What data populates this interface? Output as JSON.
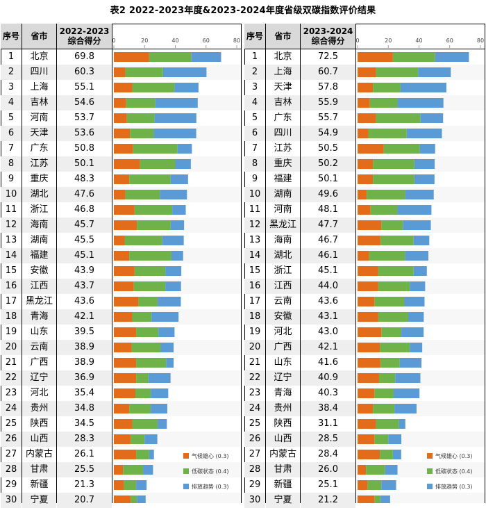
{
  "title": "表2 2022-2023年度&2023-2024年度省级双碳指数评价结果",
  "colors": {
    "climate": "#e36c1a",
    "lowcarbon": "#6fb24a",
    "emission": "#5b9bd5"
  },
  "chart_data": [
    {
      "type": "bar",
      "orientation": "horizontal",
      "stacked": true,
      "headers": {
        "seq": "序号",
        "province": "省市",
        "score_line1": "2022-2023",
        "score_line2": "综合得分"
      },
      "xlim": [
        0,
        80
      ],
      "xticks": [
        0,
        20,
        40,
        60,
        80
      ],
      "legend": [
        "气候雄心 (0.3)",
        "低碳状态 (0.4)",
        "排放趋势 (0.3)"
      ],
      "legend_position": "bottom-right",
      "rows": [
        {
          "rank": 1,
          "province": "北京",
          "score": "69.8",
          "climate": 23.0,
          "lowcarbon": 27.5,
          "emission": 19.3
        },
        {
          "rank": 2,
          "province": "四川",
          "score": "60.3",
          "climate": 7.5,
          "lowcarbon": 24.5,
          "emission": 28.3
        },
        {
          "rank": 3,
          "province": "上海",
          "score": "55.1",
          "climate": 12.0,
          "lowcarbon": 27.5,
          "emission": 15.6
        },
        {
          "rank": 4,
          "province": "吉林",
          "score": "54.6",
          "climate": 8.0,
          "lowcarbon": 19.0,
          "emission": 27.6
        },
        {
          "rank": 5,
          "province": "河南",
          "score": "53.7",
          "climate": 8.5,
          "lowcarbon": 18.0,
          "emission": 27.2
        },
        {
          "rank": 6,
          "province": "天津",
          "score": "53.6",
          "climate": 10.5,
          "lowcarbon": 15.5,
          "emission": 27.6
        },
        {
          "rank": 7,
          "province": "广东",
          "score": "50.8",
          "climate": 12.5,
          "lowcarbon": 29.0,
          "emission": 9.3
        },
        {
          "rank": 8,
          "province": "江苏",
          "score": "50.1",
          "climate": 17.0,
          "lowcarbon": 23.0,
          "emission": 10.1
        },
        {
          "rank": 9,
          "province": "重庆",
          "score": "48.3",
          "climate": 10.0,
          "lowcarbon": 27.0,
          "emission": 11.3
        },
        {
          "rank": 10,
          "province": "湖北",
          "score": "47.6",
          "climate": 7.5,
          "lowcarbon": 22.5,
          "emission": 17.6
        },
        {
          "rank": 11,
          "province": "浙江",
          "score": "46.8",
          "climate": 13.5,
          "lowcarbon": 24.5,
          "emission": 8.8
        },
        {
          "rank": 12,
          "province": "海南",
          "score": "45.7",
          "climate": 15.0,
          "lowcarbon": 22.0,
          "emission": 8.7
        },
        {
          "rank": 13,
          "province": "湖南",
          "score": "45.5",
          "climate": 7.0,
          "lowcarbon": 24.5,
          "emission": 14.0
        },
        {
          "rank": 14,
          "province": "福建",
          "score": "45.1",
          "climate": 10.0,
          "lowcarbon": 27.5,
          "emission": 7.6
        },
        {
          "rank": 15,
          "province": "安徽",
          "score": "43.9",
          "climate": 13.5,
          "lowcarbon": 20.0,
          "emission": 10.4
        },
        {
          "rank": 16,
          "province": "江西",
          "score": "43.7",
          "climate": 13.0,
          "lowcarbon": 20.5,
          "emission": 10.2
        },
        {
          "rank": 17,
          "province": "黑龙江",
          "score": "43.6",
          "climate": 16.0,
          "lowcarbon": 12.5,
          "emission": 15.1
        },
        {
          "rank": 18,
          "province": "青海",
          "score": "42.1",
          "climate": 12.0,
          "lowcarbon": 12.5,
          "emission": 17.6
        },
        {
          "rank": 19,
          "province": "山东",
          "score": "39.5",
          "climate": 14.5,
          "lowcarbon": 14.5,
          "emission": 10.5
        },
        {
          "rank": 20,
          "province": "云南",
          "score": "38.9",
          "climate": 11.5,
          "lowcarbon": 19.0,
          "emission": 8.4
        },
        {
          "rank": 21,
          "province": "广西",
          "score": "38.9",
          "climate": 14.5,
          "lowcarbon": 19.5,
          "emission": 4.9
        },
        {
          "rank": 22,
          "province": "辽宁",
          "score": "36.9",
          "climate": 14.5,
          "lowcarbon": 8.0,
          "emission": 14.4
        },
        {
          "rank": 23,
          "province": "河北",
          "score": "35.4",
          "climate": 14.0,
          "lowcarbon": 10.0,
          "emission": 11.4
        },
        {
          "rank": 24,
          "province": "贵州",
          "score": "34.8",
          "climate": 10.0,
          "lowcarbon": 14.0,
          "emission": 10.8
        },
        {
          "rank": 25,
          "province": "陕西",
          "score": "34.5",
          "climate": 12.0,
          "lowcarbon": 16.5,
          "emission": 6.0
        },
        {
          "rank": 26,
          "province": "山西",
          "score": "28.3",
          "climate": 11.0,
          "lowcarbon": 9.0,
          "emission": 8.3
        },
        {
          "rank": 27,
          "province": "内蒙古",
          "score": "26.1",
          "climate": 14.5,
          "lowcarbon": 8.5,
          "emission": 3.1
        },
        {
          "rank": 28,
          "province": "甘肃",
          "score": "25.5",
          "climate": 6.0,
          "lowcarbon": 13.0,
          "emission": 6.5
        },
        {
          "rank": 29,
          "province": "新疆",
          "score": "21.3",
          "climate": 6.5,
          "lowcarbon": 8.0,
          "emission": 6.8
        },
        {
          "rank": 30,
          "province": "宁夏",
          "score": "20.7",
          "climate": 11.0,
          "lowcarbon": 4.0,
          "emission": 5.7
        }
      ]
    },
    {
      "type": "bar",
      "orientation": "horizontal",
      "stacked": true,
      "headers": {
        "seq": "序号",
        "province": "省市",
        "score_line1": "2023-2024",
        "score_line2": "综合得分"
      },
      "xlim": [
        0,
        80
      ],
      "xticks": [
        0,
        20,
        40,
        60,
        80
      ],
      "legend": [
        "气候雄心 (0.3)",
        "低碳状态 (0.4)",
        "排放趋势 (0.3)"
      ],
      "legend_position": "bottom-right",
      "rows": [
        {
          "rank": 1,
          "province": "北京",
          "score": "72.5",
          "climate": 23.0,
          "lowcarbon": 27.5,
          "emission": 22.0
        },
        {
          "rank": 2,
          "province": "上海",
          "score": "60.7",
          "climate": 12.0,
          "lowcarbon": 27.5,
          "emission": 21.2
        },
        {
          "rank": 3,
          "province": "天津",
          "score": "57.8",
          "climate": 10.0,
          "lowcarbon": 18.0,
          "emission": 29.8
        },
        {
          "rank": 4,
          "province": "吉林",
          "score": "55.9",
          "climate": 8.0,
          "lowcarbon": 18.0,
          "emission": 29.9
        },
        {
          "rank": 5,
          "province": "广东",
          "score": "55.7",
          "climate": 12.0,
          "lowcarbon": 29.0,
          "emission": 14.7
        },
        {
          "rank": 6,
          "province": "四川",
          "score": "54.9",
          "climate": 7.0,
          "lowcarbon": 25.0,
          "emission": 22.9
        },
        {
          "rank": 7,
          "province": "江苏",
          "score": "50.5",
          "climate": 17.0,
          "lowcarbon": 23.5,
          "emission": 10.0
        },
        {
          "rank": 8,
          "province": "重庆",
          "score": "50.2",
          "climate": 10.0,
          "lowcarbon": 27.0,
          "emission": 13.2
        },
        {
          "rank": 9,
          "province": "福建",
          "score": "50.1",
          "climate": 10.0,
          "lowcarbon": 27.0,
          "emission": 13.1
        },
        {
          "rank": 10,
          "province": "湖南",
          "score": "49.6",
          "climate": 6.0,
          "lowcarbon": 25.0,
          "emission": 18.6
        },
        {
          "rank": 11,
          "province": "河南",
          "score": "48.1",
          "climate": 8.5,
          "lowcarbon": 17.5,
          "emission": 22.1
        },
        {
          "rank": 12,
          "province": "黑龙江",
          "score": "47.7",
          "climate": 15.5,
          "lowcarbon": 14.0,
          "emission": 18.2
        },
        {
          "rank": 13,
          "province": "海南",
          "score": "46.7",
          "climate": 15.0,
          "lowcarbon": 21.5,
          "emission": 10.2
        },
        {
          "rank": 14,
          "province": "湖北",
          "score": "46.1",
          "climate": 7.5,
          "lowcarbon": 23.5,
          "emission": 15.1
        },
        {
          "rank": 15,
          "province": "浙江",
          "score": "45.1",
          "climate": 13.5,
          "lowcarbon": 23.0,
          "emission": 8.6
        },
        {
          "rank": 16,
          "province": "江西",
          "score": "44.0",
          "climate": 13.5,
          "lowcarbon": 20.5,
          "emission": 10.0
        },
        {
          "rank": 17,
          "province": "云南",
          "score": "43.6",
          "climate": 11.0,
          "lowcarbon": 19.5,
          "emission": 13.1
        },
        {
          "rank": 18,
          "province": "安徽",
          "score": "43.1",
          "climate": 13.5,
          "lowcarbon": 19.5,
          "emission": 10.1
        },
        {
          "rank": 19,
          "province": "河北",
          "score": "43.0",
          "climate": 15.5,
          "lowcarbon": 13.0,
          "emission": 14.5
        },
        {
          "rank": 20,
          "province": "广西",
          "score": "42.1",
          "climate": 14.5,
          "lowcarbon": 19.5,
          "emission": 8.1
        },
        {
          "rank": 21,
          "province": "山东",
          "score": "41.6",
          "climate": 15.0,
          "lowcarbon": 12.5,
          "emission": 14.1
        },
        {
          "rank": 22,
          "province": "辽宁",
          "score": "40.9",
          "climate": 14.0,
          "lowcarbon": 10.5,
          "emission": 16.4
        },
        {
          "rank": 23,
          "province": "青海",
          "score": "40.3",
          "climate": 11.0,
          "lowcarbon": 12.5,
          "emission": 16.8
        },
        {
          "rank": 24,
          "province": "贵州",
          "score": "38.4",
          "climate": 10.0,
          "lowcarbon": 14.0,
          "emission": 14.4
        },
        {
          "rank": 25,
          "province": "陕西",
          "score": "31.1",
          "climate": 12.0,
          "lowcarbon": 15.0,
          "emission": 4.1
        },
        {
          "rank": 26,
          "province": "山西",
          "score": "28.5",
          "climate": 11.0,
          "lowcarbon": 9.0,
          "emission": 8.5
        },
        {
          "rank": 27,
          "province": "内蒙古",
          "score": "28.4",
          "climate": 14.5,
          "lowcarbon": 8.5,
          "emission": 5.4
        },
        {
          "rank": 28,
          "province": "甘肃",
          "score": "26.0",
          "climate": 5.5,
          "lowcarbon": 12.5,
          "emission": 8.0
        },
        {
          "rank": 29,
          "province": "新疆",
          "score": "25.1",
          "climate": 6.5,
          "lowcarbon": 9.0,
          "emission": 9.6
        },
        {
          "rank": 30,
          "province": "宁夏",
          "score": "21.2",
          "climate": 11.0,
          "lowcarbon": 4.0,
          "emission": 6.2
        }
      ]
    }
  ]
}
